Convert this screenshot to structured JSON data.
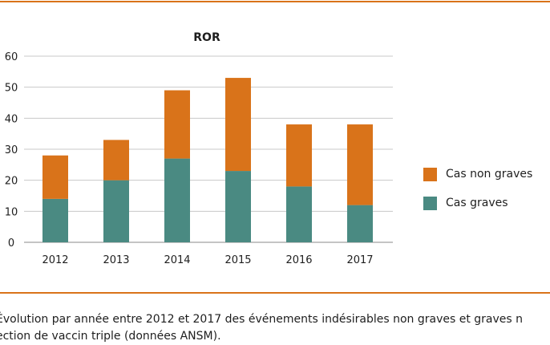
{
  "chart_data": {
    "type": "bar",
    "stacked": true,
    "title": "ROR",
    "xlabel": "",
    "ylabel": "",
    "categories": [
      "2012",
      "2013",
      "2014",
      "2015",
      "2016",
      "2017"
    ],
    "series": [
      {
        "name": "Cas graves",
        "color": "#4a8a82",
        "values": [
          14,
          20,
          27,
          23,
          18,
          12
        ]
      },
      {
        "name": "Cas non graves",
        "color": "#d9731a",
        "values": [
          14,
          13,
          22,
          30,
          20,
          26
        ]
      }
    ],
    "ylim": [
      0,
      60
    ],
    "yticks": [
      0,
      10,
      20,
      30,
      40,
      50,
      60
    ],
    "grid": true,
    "legend_position": "right"
  },
  "legend": [
    {
      "label": "Cas non graves",
      "color": "#d9731a"
    },
    {
      "label": "Cas graves",
      "color": "#4a8a82"
    }
  ],
  "caption": {
    "line1": "Évolution par année entre 2012 et 2017 des événements indésirables non graves et graves n",
    "line2": "ection de vaccin triple (données ANSM)."
  },
  "colors": {
    "accent_rule": "#d9731a",
    "grid": "#c8c8c8"
  }
}
